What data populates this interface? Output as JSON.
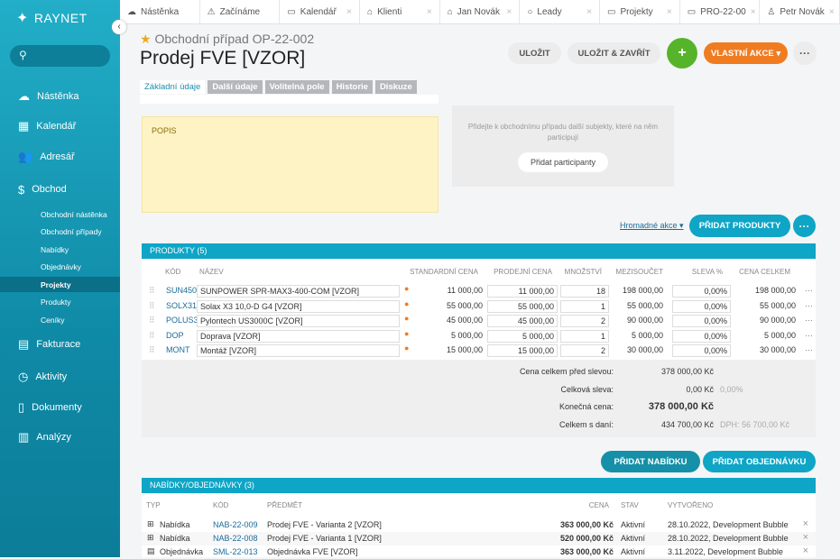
{
  "app": {
    "logo": "RAYNET",
    "search_icon": "search-icon"
  },
  "sidebar": {
    "items": [
      {
        "label": "Nástěnka",
        "icon": "cloud-icon"
      },
      {
        "label": "Kalendář",
        "icon": "calendar-icon"
      },
      {
        "label": "Adresář",
        "icon": "contacts-icon"
      },
      {
        "label": "Obchod",
        "icon": "dollar-icon"
      }
    ],
    "sub": [
      "Obchodní nástěnka",
      "Obchodní případy",
      "Nabídky",
      "Objednávky",
      "Projekty",
      "Produkty",
      "Ceníky"
    ],
    "items2": [
      {
        "label": "Fakturace",
        "icon": "invoice-icon"
      },
      {
        "label": "Aktivity",
        "icon": "clock-icon"
      },
      {
        "label": "Dokumenty",
        "icon": "document-icon"
      },
      {
        "label": "Analýzy",
        "icon": "chart-icon"
      }
    ]
  },
  "tabs": [
    "Nástěnka",
    "Začínáme",
    "Kalendář",
    "Klienti",
    "Jan Novák",
    "Leady",
    "Projekty",
    "PRO-22-00",
    "Petr Novák"
  ],
  "header": {
    "subtitle": "Obchodní případ OP-22-002",
    "title": "Prodej FVE [VZOR]",
    "save": "ULOŽIT",
    "save_close": "ULOŽIT & ZAVŘÍT",
    "add": "+",
    "custom": "VLASTNÍ AKCE ▾",
    "more": "···"
  },
  "page_tabs": [
    "Základní údaje",
    "Další údaje",
    "Volitelná pole",
    "Historie",
    "Diskuze"
  ],
  "popis": "POPIS",
  "participants": {
    "text": "Přidejte k obchodnímu případu další subjekty, které na něm participují",
    "button": "Přidat participanty"
  },
  "bulk": "Hromadné akce",
  "add_products": "PŘIDAT PRODUKTY",
  "products": {
    "title": "PRODUKTY (5)",
    "columns": [
      "KÓD",
      "NÁZEV",
      "STANDARDNÍ CENA",
      "PRODEJNÍ CENA",
      "MNOŽSTVÍ",
      "MEZISOUČET",
      "SLEVA %",
      "CENA CELKEM"
    ],
    "rows": [
      [
        "SUN450",
        "SUNPOWER SPR-MAX3-400-COM [VZOR]",
        "11 000,00",
        "11 000,00",
        "18",
        "198 000,00",
        "0,00%",
        "198 000,00"
      ],
      [
        "SOLX31",
        "Solax X3 10,0-D G4 [VZOR]",
        "55 000,00",
        "55 000,00",
        "1",
        "55 000,00",
        "0,00%",
        "55 000,00"
      ],
      [
        "POLUS3",
        "Pylontech US3000C [VZOR]",
        "45 000,00",
        "45 000,00",
        "2",
        "90 000,00",
        "0,00%",
        "90 000,00"
      ],
      [
        "DOP",
        "Doprava [VZOR]",
        "5 000,00",
        "5 000,00",
        "1",
        "5 000,00",
        "0,00%",
        "5 000,00"
      ],
      [
        "MONT",
        "Montáž [VZOR]",
        "15 000,00",
        "15 000,00",
        "2",
        "30 000,00",
        "0,00%",
        "30 000,00"
      ]
    ]
  },
  "summary": [
    {
      "label": "Cena celkem před slevou:",
      "value": "378 000,00 Kč",
      "extra": ""
    },
    {
      "label": "Celková sleva:",
      "value": "0,00 Kč",
      "extra": "0,00%"
    },
    {
      "label": "Konečná cena:",
      "value": "378 000,00 Kč",
      "extra": ""
    },
    {
      "label": "Celkem s daní:",
      "value": "434 700,00 Kč",
      "extra": "DPH: 56 700,00 Kč"
    }
  ],
  "add_offer": "PŘIDAT NABÍDKU",
  "add_order": "PŘIDAT OBJEDNÁVKU",
  "offers": {
    "title": "NABÍDKY/OBJEDNÁVKY (3)",
    "columns": [
      "TYP",
      "KÓD",
      "PŘEDMĚT",
      "CENA",
      "STAV",
      "VYTVOŘENO"
    ],
    "rows": [
      [
        "Nabídka",
        "NAB-22-009",
        "Prodej FVE - Varianta 2 [VZOR]",
        "363 000,00 Kč",
        "Aktivní",
        "28.10.2022, Development Bubble"
      ],
      [
        "Nabídka",
        "NAB-22-008",
        "Prodej FVE - Varianta 1 [VZOR]",
        "520 000,00 Kč",
        "Aktivní",
        "28.10.2022, Development Bubble"
      ],
      [
        "Objednávka",
        "SML-22-013",
        "Objednávka FVE [VZOR]",
        "363 000,00 Kč",
        "Aktivní",
        "3.11.2022, Development Bubble"
      ]
    ]
  },
  "colors": {
    "teal": "#0ea5c6",
    "green": "#56b42a",
    "orange": "#f07c22"
  }
}
